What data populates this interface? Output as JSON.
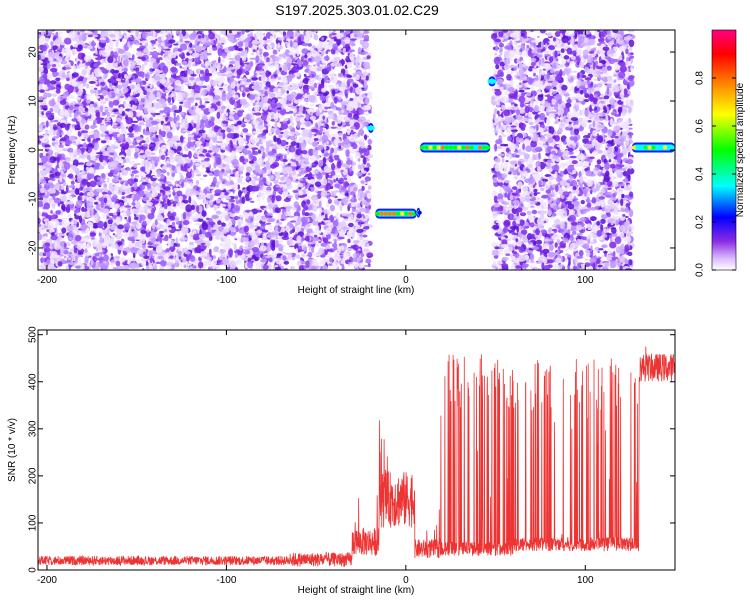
{
  "title": "S197.2025.303.01.02.C29",
  "chart_data": [
    {
      "type": "heatmap",
      "xlabel": "Height of straight line (km)",
      "ylabel": "Frequency (Hz)",
      "xlim": [
        -205,
        150
      ],
      "ylim": [
        -24.5,
        24.5
      ],
      "x_ticks": [
        -200,
        -100,
        0,
        100
      ],
      "y_ticks": [
        -20,
        -10,
        0,
        10,
        20
      ],
      "colorbar": {
        "label": "Normalized spectral amplitude",
        "range": [
          0,
          1
        ],
        "ticks": [
          0.0,
          0.2,
          0.4,
          0.6,
          0.8
        ],
        "colors": [
          "#ffffff",
          "#8a2be2",
          "#0000ff",
          "#00ffff",
          "#00ff00",
          "#ffff00",
          "#ff8000",
          "#ff0000",
          "#ff0080"
        ]
      },
      "noise_regions": [
        [
          -205,
          -20
        ],
        [
          49,
          126
        ]
      ],
      "clear_regions": [
        [
          -20,
          49
        ],
        [
          126,
          150
        ]
      ],
      "tracks": [
        {
          "x": [
            -21,
            -18
          ],
          "freq": 4.5,
          "amplitude": 0.5
        },
        {
          "x": [
            -17,
            6
          ],
          "freq": -13,
          "amplitude": 0.9
        },
        {
          "x": [
            6,
            8
          ],
          "freq": -12.8,
          "amplitude": 0.45
        },
        {
          "x": [
            8,
            47
          ],
          "freq": 0.5,
          "amplitude": 0.85
        },
        {
          "x": [
            46,
            50
          ],
          "freq": 14,
          "amplitude": 0.6
        },
        {
          "x": [
            126,
            150
          ],
          "freq": 0.5,
          "amplitude": 0.7
        }
      ]
    },
    {
      "type": "line",
      "xlabel": "Height of straight line (km)",
      "ylabel": "SNR (10 * v/v)",
      "xlim": [
        -205,
        150
      ],
      "ylim": [
        0,
        510
      ],
      "x_ticks": [
        -200,
        -100,
        0,
        100
      ],
      "y_ticks": [
        0,
        100,
        200,
        300,
        400,
        500
      ],
      "color": "#ee3333",
      "series": [
        {
          "segments": [
            {
              "x": [
                -205,
                -65
              ],
              "base": 20,
              "noise": 10,
              "spikes": 25
            },
            {
              "x": [
                -65,
                -30
              ],
              "base": 22,
              "noise": 15,
              "spikes": 40
            },
            {
              "x": [
                -30,
                -15
              ],
              "base": 60,
              "noise": 30,
              "spikes": 200
            },
            {
              "x": [
                -15,
                5
              ],
              "base": 150,
              "noise": 60,
              "spikes": 320
            },
            {
              "x": [
                5,
                20
              ],
              "base": 45,
              "noise": 20,
              "spikes": 340
            },
            {
              "x": [
                20,
                60
              ],
              "base": 45,
              "noise": 15,
              "spikes": 460
            },
            {
              "x": [
                60,
                130
              ],
              "base": 55,
              "noise": 15,
              "spikes": 450
            },
            {
              "x": [
                130,
                150
              ],
              "base": 430,
              "noise": 30,
              "spikes": 500
            }
          ]
        }
      ]
    }
  ]
}
